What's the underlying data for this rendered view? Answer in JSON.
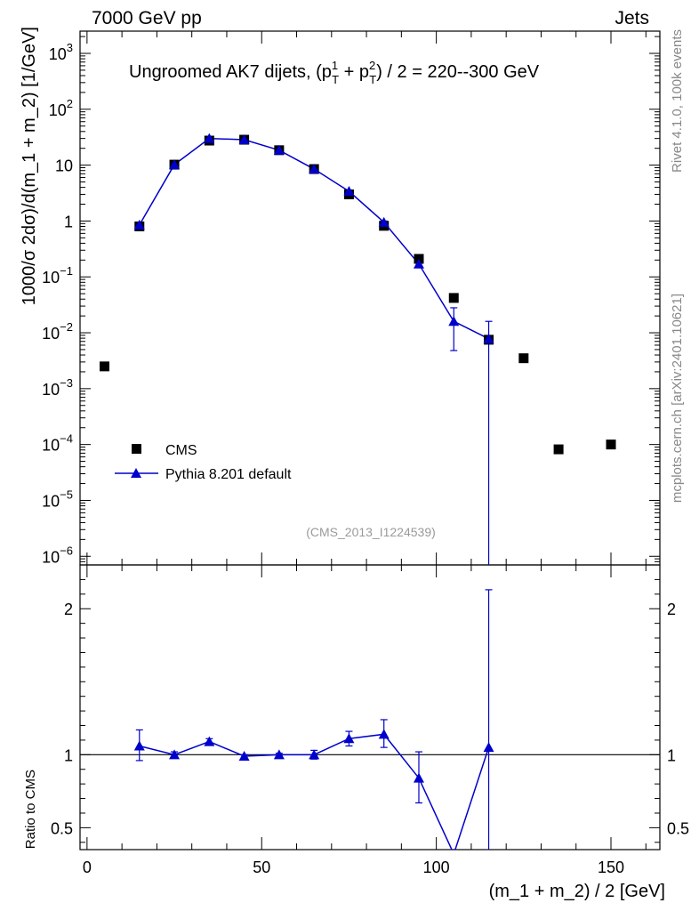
{
  "header": {
    "left": "7000 GeV pp",
    "right": "Jets"
  },
  "side_labels": {
    "top": "Rivet 4.1.0,  100k events",
    "bottom": "mcplots.cern.ch [arXiv:2401.10621]"
  },
  "chart_data": {
    "type": "scatter",
    "title": "Ungroomed AK7 dijets, (p",
    "title_sup1": "1",
    "title_sub1": "T",
    "title_mid": " + p",
    "title_sup2": "2",
    "title_sub2": "T",
    "title_end": ") / 2 = 220--300 GeV",
    "watermark": "(CMS_2013_I1224539)",
    "xlabel": "(m_1 + m_2) / 2 [GeV]",
    "ylabel": "1000/σ  2dσ)/d(m_1 + m_2) [1/GeV]",
    "ratio_ylabel": "Ratio to CMS",
    "xlim": [
      -2,
      164
    ],
    "ylim": [
      7e-07,
      2500
    ],
    "ratio_ylim": [
      0.35,
      2.3
    ],
    "x_ticks": [
      0,
      50,
      100,
      150
    ],
    "x_tick_labels": [
      "0",
      "50",
      "100",
      "150"
    ],
    "y_tick_labels": [
      {
        "v": 1000,
        "base": "10",
        "exp": "3"
      },
      {
        "v": 100,
        "base": "10",
        "exp": "2"
      },
      {
        "v": 10,
        "base": "10",
        "exp": ""
      },
      {
        "v": 1,
        "base": "1",
        "exp": ""
      },
      {
        "v": 0.1,
        "base": "10",
        "exp": "−1"
      },
      {
        "v": 0.01,
        "base": "10",
        "exp": "−2"
      },
      {
        "v": 0.001,
        "base": "10",
        "exp": "−3"
      },
      {
        "v": 0.0001,
        "base": "10",
        "exp": "−4"
      },
      {
        "v": 1e-05,
        "base": "10",
        "exp": "−5"
      },
      {
        "v": 1e-06,
        "base": "10",
        "exp": "−6"
      }
    ],
    "ratio_ticks": [
      {
        "v": 2,
        "label": "2"
      },
      {
        "v": 1,
        "label": "1"
      },
      {
        "v": 0.5,
        "label": "0.5"
      }
    ],
    "series": [
      {
        "name": "CMS",
        "color": "#000000",
        "marker": "square",
        "x": [
          5,
          15,
          25,
          35,
          45,
          55,
          65,
          75,
          85,
          95,
          105,
          115,
          125,
          135,
          150
        ],
        "y": [
          0.0025,
          0.8,
          10.2,
          27.5,
          28.5,
          18.5,
          8.5,
          3.0,
          0.82,
          0.21,
          0.042,
          0.0075,
          0.0035,
          8.2e-05,
          0.0001
        ]
      },
      {
        "name": "Pythia 8.201 default",
        "color": "#0000cc",
        "marker": "triangle",
        "x": [
          15,
          25,
          35,
          45,
          55,
          65,
          75,
          85,
          95,
          105,
          115
        ],
        "y": [
          0.85,
          10.2,
          30.0,
          28.5,
          18.5,
          8.5,
          3.4,
          0.95,
          0.17,
          0.016,
          0.0078
        ],
        "yerr_lo": [
          0.83,
          10.0,
          29.5,
          28.2,
          18.3,
          8.3,
          3.3,
          0.9,
          0.15,
          0.0048,
          1e-07
        ],
        "yerr_hi": [
          0.87,
          10.4,
          30.5,
          28.8,
          18.7,
          8.7,
          3.5,
          1.0,
          0.19,
          0.028,
          0.016
        ],
        "ratio": [
          1.06,
          1.0,
          1.09,
          0.99,
          1.0,
          1.0,
          1.11,
          1.14,
          0.84,
          0.32,
          1.05
        ],
        "ratio_lo": [
          0.96,
          0.98,
          1.07,
          0.98,
          0.99,
          0.97,
          1.06,
          1.05,
          0.67,
          0.3,
          0.3
        ],
        "ratio_hi": [
          1.17,
          1.02,
          1.11,
          1.0,
          1.01,
          1.03,
          1.16,
          1.24,
          1.02,
          0.34,
          2.13
        ]
      }
    ],
    "legend": {
      "position": "bottom-left"
    }
  }
}
